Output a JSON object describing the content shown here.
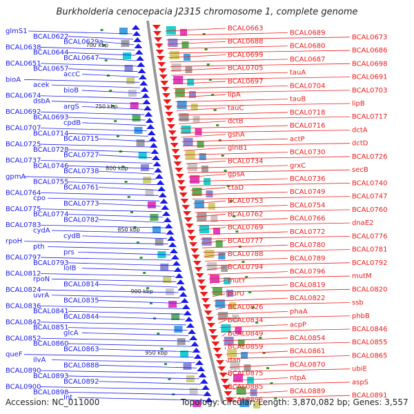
{
  "title": "Burkholderia cenocepacia J2315 chromosome 1, complete genome",
  "accession": "Accession: NC_011000",
  "genome_info": "Topology: circular; Length: 3,870,082 bp; Genes: 3,557",
  "colors": {
    "forward": "#1a1aee",
    "reverse": "#ee1a1a",
    "backbone": "#999999",
    "ticks": "#2a9a2a",
    "text": "#222222"
  },
  "position_scale": [
    "700 kbp",
    "750 kbp",
    "800 kbp",
    "850 kbp",
    "900 kbp",
    "950 kbp"
  ],
  "forward_genes": [
    "glmS1",
    "BCAL0622",
    "BCAL0629a",
    "BCAL0638",
    "BCAL0644",
    "BCAL0647",
    "BCAL0651",
    "BCAL0657",
    "accC",
    "bioA",
    "acek",
    "bioB",
    "BCAL0674",
    "dsbA",
    "argS",
    "BCAL0692",
    "BCAL0693",
    "cpdB",
    "BCAL0707",
    "BCAL0714",
    "BCAL0715",
    "BCAL0725",
    "BCAL0728",
    "BCAL0727",
    "BCAL0737",
    "BCAL0746",
    "BCAL0738",
    "gpmA",
    "BCAL0755",
    "BCAL0761",
    "BCAL0764",
    "cpo",
    "BCAL0773",
    "BCAL0775",
    "BCAL0774",
    "BCAL0782",
    "BCAL0783",
    "cydA",
    "cydB",
    "rpoH",
    "pth",
    "prs",
    "BCAL0797",
    "BCAL0793",
    "lolB",
    "BCAL0812",
    "rpoN",
    "BCAL0814",
    "BCAL0824",
    "uvrA",
    "BCAL0835",
    "BCAL0836",
    "BCAL0841",
    "BCAL0844",
    "BCAL0842",
    "BCAL0851",
    "glcA",
    "BCAL0852",
    "BCAL0860",
    "BCAL0863",
    "queF",
    "ilvA",
    "BCAL0888",
    "BCAL0890",
    "BCAL0893",
    "BCAL0892",
    "BCAL0900",
    "BCAL0898",
    "Int"
  ],
  "reverse_genes": [
    "BCAL0663",
    "BCAL0689",
    "BCAL0673",
    "BCAL0688",
    "BCAL0680",
    "BCAL0686",
    "BCAL0699",
    "BCAL0687",
    "BCAL0698",
    "BCAL0705",
    "tauA",
    "BCAL0691",
    "BCAL0697",
    "BCAL0704",
    "BCAL0703",
    "lipA",
    "tauB",
    "lipB",
    "tauC",
    "BCAL0718",
    "BCAL0717",
    "dctB",
    "BCAL0716",
    "dctA",
    "gshA",
    "actP",
    "dctD",
    "glnB1",
    "BCAL0730",
    "BCAL0726",
    "BCAL0734",
    "grxC",
    "secB",
    "gpsA",
    "BCAL0736",
    "BCAL0740",
    "ctaD",
    "BCAL0749",
    "BCAL0747",
    "BCAL0753",
    "BCAL0754",
    "BCAL0760",
    "BCAL0762",
    "BCAL0766",
    "dnaE2",
    "BCAL0769",
    "BCAL0772",
    "BCAL0776",
    "BCAL0777",
    "BCAL0780",
    "BCAL0781",
    "BCAL0788",
    "BCAL0789",
    "BCAL0792",
    "BCAL0794",
    "BCAL0796",
    "mutM",
    "mutY",
    "BCAL0819",
    "BCAL0820",
    "purU",
    "BCAL0822",
    "ssb",
    "BCAL0826",
    "phaA",
    "phbB",
    "BCAL0834",
    "acpP",
    "BCAL0846",
    "BCAL0849",
    "BCAL0854",
    "BCAL0855",
    "BCAL0859",
    "BCAL0861",
    "BCAL0865",
    "dan",
    "BCAL0870",
    "ubiE",
    "BCAL0875",
    "ntpA",
    "aspS",
    "BCAL0885",
    "BCAL0889",
    "BCAL0891",
    "BCAL0895"
  ]
}
